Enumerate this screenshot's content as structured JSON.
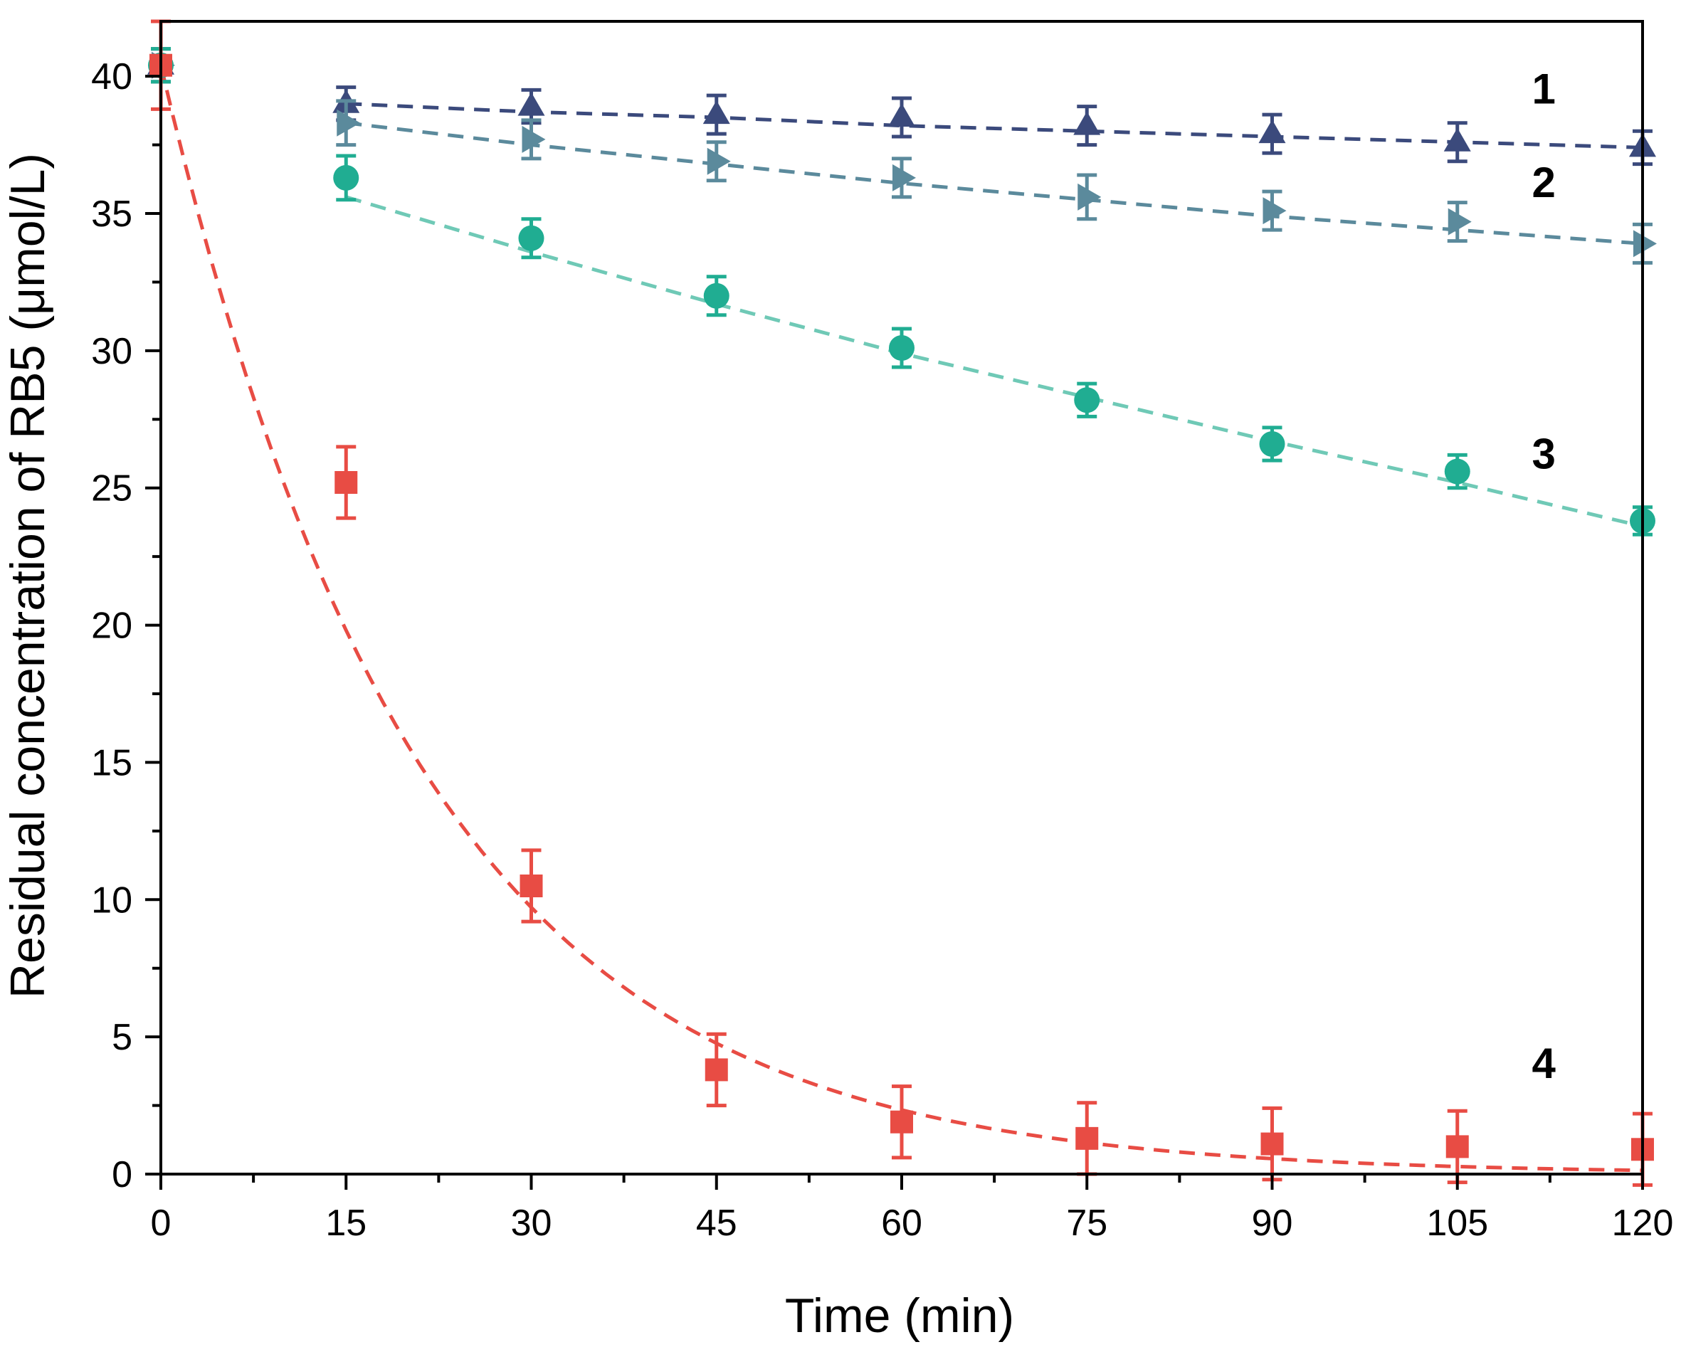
{
  "chart_data": {
    "type": "scatter",
    "title": "",
    "xlabel": "Time (min)",
    "ylabel": "Residual concentration of RB5 (μmol/L)",
    "xlim": [
      0,
      120
    ],
    "ylim": [
      0,
      42
    ],
    "x_ticks": [
      0,
      15,
      30,
      45,
      60,
      75,
      90,
      105,
      120
    ],
    "y_ticks": [
      0,
      5,
      10,
      15,
      20,
      25,
      30,
      35,
      40
    ],
    "grid": false,
    "series": [
      {
        "name": "1",
        "label": "1",
        "marker": "triangle-up",
        "color": "#3b4a7c",
        "x": [
          0,
          15,
          30,
          45,
          60,
          75,
          90,
          105,
          120
        ],
        "y": [
          40.4,
          39.0,
          38.9,
          38.6,
          38.5,
          38.2,
          37.9,
          37.6,
          37.4
        ],
        "err": [
          0.6,
          0.6,
          0.6,
          0.7,
          0.7,
          0.7,
          0.7,
          0.7,
          0.6
        ],
        "fit": [
          40.4,
          39.0,
          38.7,
          38.5,
          38.2,
          38.0,
          37.8,
          37.6,
          37.4
        ],
        "label_pos": [
          112,
          39.0
        ]
      },
      {
        "name": "2",
        "label": "2",
        "marker": "triangle-right",
        "color": "#5b8a9c",
        "x": [
          0,
          15,
          30,
          45,
          60,
          75,
          90,
          105,
          120
        ],
        "y": [
          40.4,
          38.3,
          37.7,
          36.9,
          36.3,
          35.6,
          35.1,
          34.7,
          33.9
        ],
        "err": [
          0.6,
          0.8,
          0.7,
          0.7,
          0.7,
          0.8,
          0.7,
          0.7,
          0.7
        ],
        "fit": [
          40.4,
          38.3,
          37.5,
          36.8,
          36.1,
          35.5,
          34.9,
          34.4,
          33.9
        ],
        "label_pos": [
          112,
          35.6
        ]
      },
      {
        "name": "3",
        "label": "3",
        "marker": "circle",
        "color": "#20ad92",
        "fit_color": "#6fc9b6",
        "x": [
          0,
          15,
          30,
          45,
          60,
          75,
          90,
          105,
          120
        ],
        "y": [
          40.4,
          36.3,
          34.1,
          32.0,
          30.1,
          28.2,
          26.6,
          25.6,
          23.8
        ],
        "err": [
          0.6,
          0.8,
          0.7,
          0.7,
          0.7,
          0.6,
          0.6,
          0.6,
          0.5
        ],
        "fit": [
          40.4,
          35.6,
          33.6,
          31.7,
          29.9,
          28.3,
          26.7,
          25.2,
          23.6
        ],
        "label_pos": [
          112,
          25.7
        ]
      },
      {
        "name": "4",
        "label": "4",
        "marker": "square",
        "color": "#e84c44",
        "x": [
          0,
          15,
          30,
          45,
          60,
          75,
          90,
          105,
          120
        ],
        "y": [
          40.4,
          25.2,
          10.5,
          3.8,
          1.9,
          1.3,
          1.1,
          1.0,
          0.9
        ],
        "err": [
          1.6,
          1.3,
          1.3,
          1.3,
          1.3,
          1.3,
          1.3,
          1.3,
          1.3
        ],
        "fit_model": {
          "c0": 40.4,
          "k": 0.0475
        },
        "label_pos": [
          112,
          3.5
        ]
      }
    ]
  }
}
